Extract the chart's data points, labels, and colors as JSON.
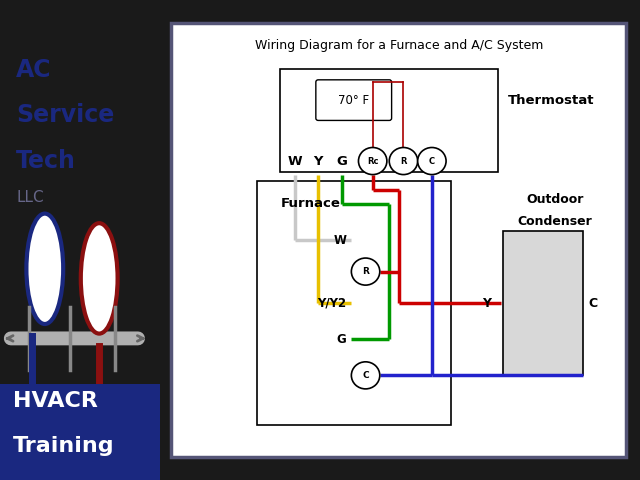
{
  "outer_bg": "#1a1a1a",
  "sidebar_bg": "#c8ccd8",
  "main_bg": "#d8d8e0",
  "diagram_bg": "#ffffff",
  "sidebar_text_color": "#1a2880",
  "hvacr_bar_color": "#1a2880",
  "gauge1_color": "#1a2880",
  "gauge2_color": "#8b1010",
  "sidebar_lines": [
    "AC",
    "Service",
    "Tech"
  ],
  "llc_text": "LLC",
  "hvacr_text": "HVACR",
  "training_text": "Training",
  "diagram_title": "Wiring Diagram for a Furnace and A/C System",
  "thermostat_label": "Thermostat",
  "temp_text": "70° F",
  "furnace_label": "Furnace",
  "condenser_line1": "Outdoor",
  "condenser_line2": "Condenser",
  "wire_W": "#c8c8c8",
  "wire_Y": "#e8c000",
  "wire_G": "#009900",
  "wire_R": "#cc0000",
  "wire_C": "#2222cc",
  "lw": 2.5
}
